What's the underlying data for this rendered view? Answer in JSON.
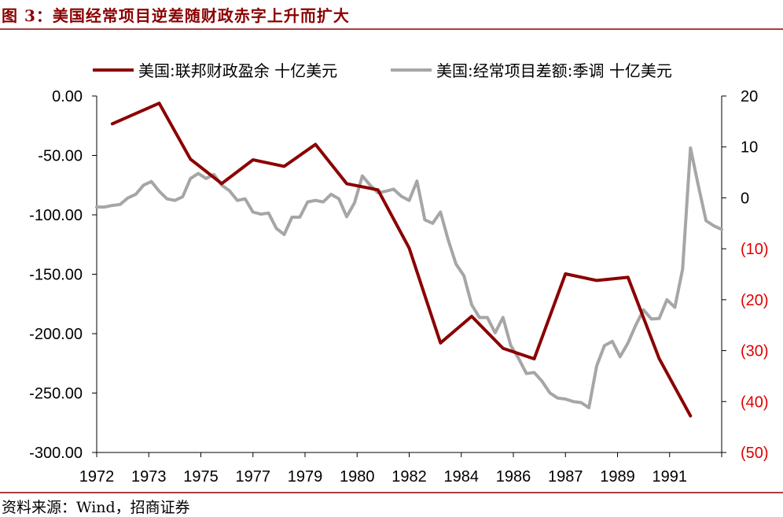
{
  "header": {
    "title": "图 3：美国经常项目逆差随财政赤字上升而扩大"
  },
  "footer": {
    "source": "资料来源：Wind，招商证券"
  },
  "chart_data": {
    "type": "line",
    "x_ticks": [
      "1972",
      "1973",
      "1975",
      "1977",
      "1979",
      "1980",
      "1982",
      "1984",
      "1986",
      "1987",
      "1989",
      "1991"
    ],
    "y_left": {
      "min": -300,
      "max": 0,
      "ticks": [
        "0.00",
        "-50.00",
        "-100.00",
        "-150.00",
        "-200.00",
        "-250.00",
        "-300.00"
      ]
    },
    "y_right": {
      "min": -50,
      "max": 20,
      "ticks": [
        "20",
        "10",
        "0",
        "(10)",
        "(20)",
        "(30)",
        "(40)",
        "(50)"
      ]
    },
    "series": [
      {
        "name": "美国:联邦财政盈余 十亿美元",
        "axis": "left",
        "color": "#8b0000",
        "points": [
          [
            1972.5,
            -23.4
          ],
          [
            1974,
            -6.1
          ],
          [
            1975,
            -53.2
          ],
          [
            1976,
            -73.7
          ],
          [
            1977,
            -53.7
          ],
          [
            1978,
            -59.2
          ],
          [
            1979,
            -40.7
          ],
          [
            1980,
            -73.8
          ],
          [
            1981,
            -79
          ],
          [
            1982,
            -128
          ],
          [
            1983,
            -207.8
          ],
          [
            1984,
            -185.4
          ],
          [
            1985,
            -212.3
          ],
          [
            1986,
            -221.2
          ],
          [
            1987,
            -149.7
          ],
          [
            1988,
            -155.2
          ],
          [
            1989,
            -152.6
          ],
          [
            1990,
            -221
          ],
          [
            1991,
            -269.2
          ]
        ]
      },
      {
        "name": "美国:经常项目差额:季调 十亿美元",
        "axis": "right",
        "color": "#a6a6a6",
        "points": [
          [
            1972,
            -1.8
          ],
          [
            1972.25,
            -1.8
          ],
          [
            1972.5,
            -1.5
          ],
          [
            1972.75,
            -1.3
          ],
          [
            1973,
            0
          ],
          [
            1973.25,
            0.7
          ],
          [
            1973.5,
            2.5
          ],
          [
            1973.75,
            3.2
          ],
          [
            1974,
            1.3
          ],
          [
            1974.25,
            -0.2
          ],
          [
            1974.5,
            -0.5
          ],
          [
            1974.75,
            0.2
          ],
          [
            1975,
            3.8
          ],
          [
            1975.25,
            4.8
          ],
          [
            1975.5,
            3.8
          ],
          [
            1975.75,
            4.6
          ],
          [
            1976,
            2.5
          ],
          [
            1976.25,
            1.4
          ],
          [
            1976.5,
            -0.5
          ],
          [
            1976.75,
            -0.2
          ],
          [
            1977,
            -2.8
          ],
          [
            1977.25,
            -3.2
          ],
          [
            1977.5,
            -3
          ],
          [
            1977.75,
            -6
          ],
          [
            1978,
            -7.2
          ],
          [
            1978.25,
            -3.8
          ],
          [
            1978.5,
            -3.8
          ],
          [
            1978.75,
            -0.8
          ],
          [
            1979,
            -0.5
          ],
          [
            1979.25,
            -0.8
          ],
          [
            1979.5,
            0.7
          ],
          [
            1979.75,
            -0.2
          ],
          [
            1980,
            -3.7
          ],
          [
            1980.25,
            -1
          ],
          [
            1980.5,
            4.3
          ],
          [
            1980.75,
            2.5
          ],
          [
            1981,
            1
          ],
          [
            1981.25,
            1.3
          ],
          [
            1981.5,
            1.7
          ],
          [
            1981.75,
            0.3
          ],
          [
            1982,
            -0.5
          ],
          [
            1982.25,
            3.3
          ],
          [
            1982.5,
            -4.3
          ],
          [
            1982.75,
            -5
          ],
          [
            1983,
            -2.8
          ],
          [
            1983.25,
            -8.3
          ],
          [
            1983.5,
            -13
          ],
          [
            1983.75,
            -15.3
          ],
          [
            1984,
            -21
          ],
          [
            1984.25,
            -23.5
          ],
          [
            1984.5,
            -23.5
          ],
          [
            1984.75,
            -26.5
          ],
          [
            1985,
            -23.5
          ],
          [
            1985.25,
            -29
          ],
          [
            1985.5,
            -31.5
          ],
          [
            1985.75,
            -34.5
          ],
          [
            1986,
            -34.3
          ],
          [
            1986.25,
            -36
          ],
          [
            1986.5,
            -38.3
          ],
          [
            1986.75,
            -39.3
          ],
          [
            1987,
            -39.5
          ],
          [
            1987.25,
            -40
          ],
          [
            1987.5,
            -40.2
          ],
          [
            1987.75,
            -41.2
          ],
          [
            1988,
            -33
          ],
          [
            1988.25,
            -29
          ],
          [
            1988.5,
            -28.2
          ],
          [
            1988.75,
            -31.2
          ],
          [
            1989,
            -28.5
          ],
          [
            1989.25,
            -25
          ],
          [
            1989.5,
            -22
          ],
          [
            1989.75,
            -23.8
          ],
          [
            1990,
            -23.7
          ],
          [
            1990.25,
            -20
          ],
          [
            1990.5,
            -21.5
          ],
          [
            1990.75,
            -14
          ],
          [
            1991,
            9.8
          ],
          [
            1991.25,
            2.5
          ],
          [
            1991.5,
            -4.5
          ],
          [
            1991.75,
            -5.5
          ],
          [
            1992,
            -6.2
          ]
        ]
      }
    ],
    "legend_position": "top",
    "grid": false
  }
}
